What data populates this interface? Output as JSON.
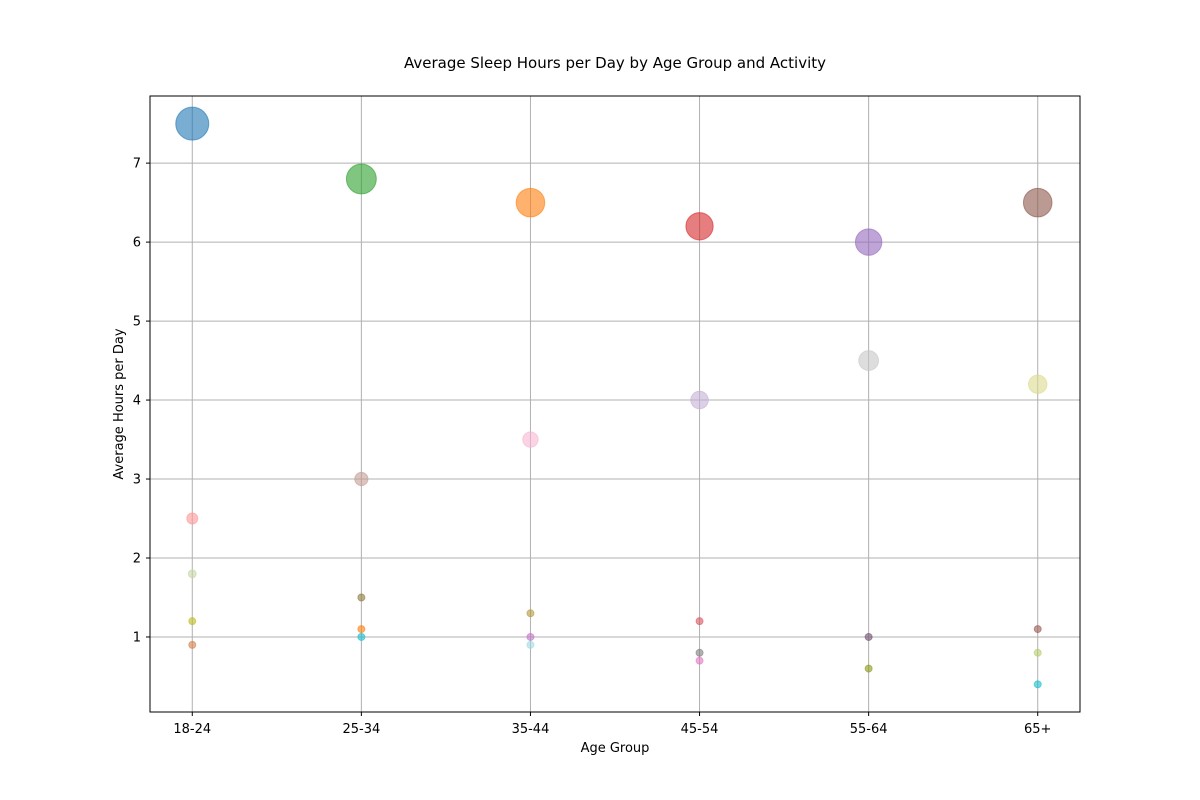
{
  "chart_data": {
    "type": "scatter",
    "title": "Average Sleep Hours per Day by Age Group and Activity",
    "xlabel": "Age Group",
    "ylabel": "Average Hours per Day",
    "categories": [
      "18-24",
      "25-34",
      "35-44",
      "45-54",
      "55-64",
      "65+"
    ],
    "ylim": [
      0.05,
      7.85
    ],
    "yticks": [
      1,
      2,
      3,
      4,
      5,
      6,
      7
    ],
    "ytick_labels": [
      "1",
      "2",
      "3",
      "4",
      "5",
      "6",
      "7"
    ],
    "grid": true,
    "bubble_size_encodes": "value",
    "points": [
      {
        "category": "18-24",
        "value": 7.5,
        "color": "#1f77b4"
      },
      {
        "category": "18-24",
        "value": 2.5,
        "color": "#ff9896"
      },
      {
        "category": "18-24",
        "value": 1.8,
        "color": "#c7d6a5"
      },
      {
        "category": "18-24",
        "value": 1.2,
        "color": "#bcbd22"
      },
      {
        "category": "18-24",
        "value": 0.9,
        "color": "#d6804a"
      },
      {
        "category": "25-34",
        "value": 6.8,
        "color": "#2ca02c"
      },
      {
        "category": "25-34",
        "value": 3.0,
        "color": "#c49c94"
      },
      {
        "category": "25-34",
        "value": 1.5,
        "color": "#8c7b3a"
      },
      {
        "category": "25-34",
        "value": 1.1,
        "color": "#ff7f0e"
      },
      {
        "category": "25-34",
        "value": 1.0,
        "color": "#17becf"
      },
      {
        "category": "35-44",
        "value": 6.5,
        "color": "#ff7f0e"
      },
      {
        "category": "35-44",
        "value": 3.5,
        "color": "#f7b6d2"
      },
      {
        "category": "35-44",
        "value": 1.3,
        "color": "#b59a3e"
      },
      {
        "category": "35-44",
        "value": 1.0,
        "color": "#c375c8"
      },
      {
        "category": "35-44",
        "value": 0.9,
        "color": "#9edae5"
      },
      {
        "category": "45-54",
        "value": 6.2,
        "color": "#d62728"
      },
      {
        "category": "45-54",
        "value": 4.0,
        "color": "#c5b0d5"
      },
      {
        "category": "45-54",
        "value": 1.2,
        "color": "#d9535d"
      },
      {
        "category": "45-54",
        "value": 0.8,
        "color": "#7f7f7f"
      },
      {
        "category": "45-54",
        "value": 0.7,
        "color": "#e377c2"
      },
      {
        "category": "55-64",
        "value": 6.0,
        "color": "#9467bd"
      },
      {
        "category": "55-64",
        "value": 4.5,
        "color": "#c7c7c7"
      },
      {
        "category": "55-64",
        "value": 1.0,
        "color": "#6f5070"
      },
      {
        "category": "55-64",
        "value": 0.6,
        "color": "#8c9a1a"
      },
      {
        "category": "65+",
        "value": 6.5,
        "color": "#8c564b"
      },
      {
        "category": "65+",
        "value": 4.2,
        "color": "#dbdb8d"
      },
      {
        "category": "65+",
        "value": 1.1,
        "color": "#9b5a52"
      },
      {
        "category": "65+",
        "value": 0.8,
        "color": "#b5cf6b"
      },
      {
        "category": "65+",
        "value": 0.4,
        "color": "#17becf"
      }
    ]
  }
}
